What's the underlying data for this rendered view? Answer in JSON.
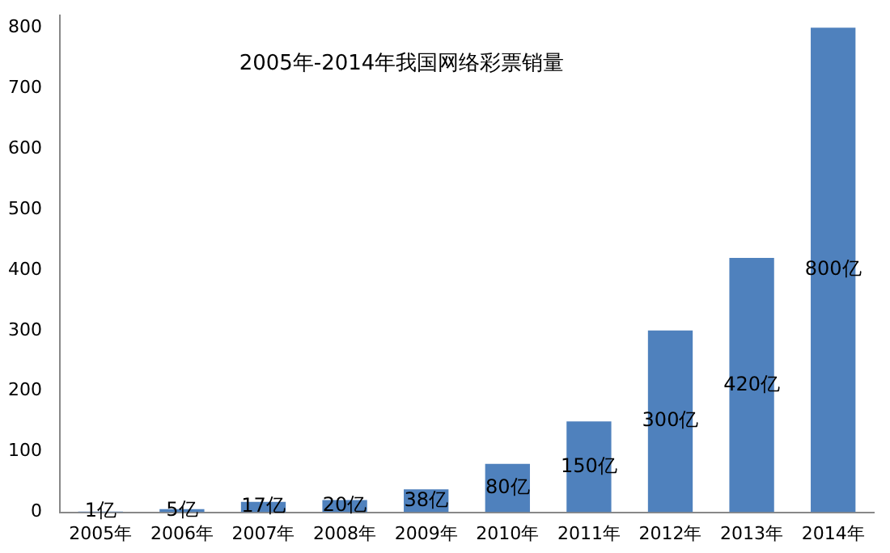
{
  "chart_data": {
    "type": "bar",
    "title": "2005年-2014年我国网络彩票销量",
    "categories": [
      "2005年",
      "2006年",
      "2007年",
      "2008年",
      "2009年",
      "2010年",
      "2011年",
      "2012年",
      "2013年",
      "2014年"
    ],
    "values": [
      1,
      5,
      17,
      20,
      38,
      80,
      150,
      300,
      420,
      800
    ],
    "value_labels": [
      "1亿",
      "5亿",
      "17亿",
      "20亿",
      "38亿",
      "80亿",
      "150亿",
      "300亿",
      "420亿",
      "800亿"
    ],
    "color": "#4f81bd",
    "ylim": [
      0,
      820
    ],
    "yticks": [
      0,
      100,
      200,
      300,
      400,
      500,
      600,
      700,
      800
    ],
    "grid": false,
    "legend": false
  }
}
